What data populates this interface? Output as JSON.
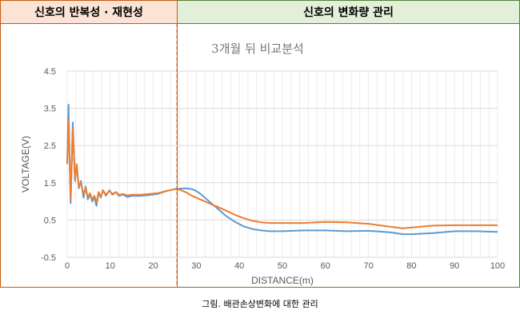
{
  "header": {
    "left_title": "신호의 반복성 · 재현성",
    "right_title": "신호의 변화량 관리"
  },
  "caption": "그림. 배관손상변화에 대한 관리",
  "colors": {
    "left_accent": "#c55a11",
    "left_fill": "#fbe4d5",
    "right_accent": "#548235",
    "right_fill": "#e2efd9",
    "series_blue": "#5b9bd5",
    "series_orange": "#ed7d31",
    "divider": "#c55a11"
  },
  "chart_data": {
    "type": "line",
    "title": "3개월 뒤 비교분석",
    "xlabel": "DISTANCE(m)",
    "ylabel": "VOLTAGE(V)",
    "xlim": [
      0,
      100
    ],
    "ylim": [
      -0.5,
      4.5
    ],
    "xticks": [
      0,
      10,
      20,
      30,
      40,
      50,
      60,
      70,
      80,
      90,
      100
    ],
    "yticks": [
      -0.5,
      0.5,
      1.5,
      2.5,
      3.5,
      4.5
    ],
    "grid": true,
    "divider_x": 25.5,
    "series": [
      {
        "color": "#5b9bd5",
        "x": [
          0,
          0.3,
          0.8,
          1.3,
          1.8,
          2.2,
          2.7,
          3.2,
          3.8,
          4.3,
          4.8,
          5.3,
          5.8,
          6.3,
          6.8,
          7.3,
          7.8,
          8.3,
          9,
          9.8,
          10.5,
          11.3,
          12,
          13,
          14,
          15,
          17,
          19,
          21,
          23,
          25,
          26,
          27.5,
          29,
          30,
          31,
          33,
          35,
          37,
          39,
          41,
          43,
          45,
          47,
          50,
          55,
          60,
          65,
          70,
          75,
          78,
          80,
          85,
          90,
          95,
          100
        ],
        "y": [
          2.0,
          3.6,
          0.95,
          3.12,
          1.55,
          2.0,
          1.35,
          1.55,
          1.1,
          1.4,
          1.05,
          1.2,
          1.0,
          1.1,
          0.88,
          1.25,
          1.1,
          1.3,
          1.15,
          1.3,
          1.18,
          1.25,
          1.15,
          1.18,
          1.12,
          1.15,
          1.15,
          1.17,
          1.2,
          1.28,
          1.33,
          1.34,
          1.35,
          1.33,
          1.28,
          1.2,
          1.0,
          0.8,
          0.6,
          0.45,
          0.33,
          0.26,
          0.22,
          0.2,
          0.2,
          0.22,
          0.22,
          0.2,
          0.21,
          0.17,
          0.12,
          0.12,
          0.15,
          0.2,
          0.2,
          0.18
        ]
      },
      {
        "color": "#ed7d31",
        "x": [
          0,
          0.3,
          0.8,
          1.3,
          1.8,
          2.2,
          2.7,
          3.2,
          3.8,
          4.3,
          4.8,
          5.3,
          5.8,
          6.3,
          6.8,
          7.3,
          7.8,
          8.3,
          9,
          9.8,
          10.5,
          11.3,
          12,
          13,
          14,
          15,
          17,
          19,
          21,
          23,
          25,
          26,
          27.5,
          29,
          31,
          33,
          35,
          37,
          39,
          41,
          43,
          45,
          47,
          50,
          55,
          60,
          65,
          70,
          75,
          78,
          80,
          85,
          90,
          95,
          100
        ],
        "y": [
          2.0,
          3.2,
          1.05,
          2.95,
          1.6,
          2.0,
          1.4,
          1.5,
          1.2,
          1.35,
          1.12,
          1.22,
          1.05,
          1.15,
          0.98,
          1.25,
          1.12,
          1.3,
          1.18,
          1.28,
          1.2,
          1.25,
          1.18,
          1.2,
          1.16,
          1.18,
          1.18,
          1.2,
          1.22,
          1.28,
          1.33,
          1.32,
          1.25,
          1.15,
          1.05,
          0.95,
          0.85,
          0.75,
          0.64,
          0.55,
          0.48,
          0.44,
          0.42,
          0.42,
          0.42,
          0.45,
          0.44,
          0.4,
          0.32,
          0.28,
          0.3,
          0.35,
          0.36,
          0.36,
          0.36
        ]
      }
    ]
  }
}
